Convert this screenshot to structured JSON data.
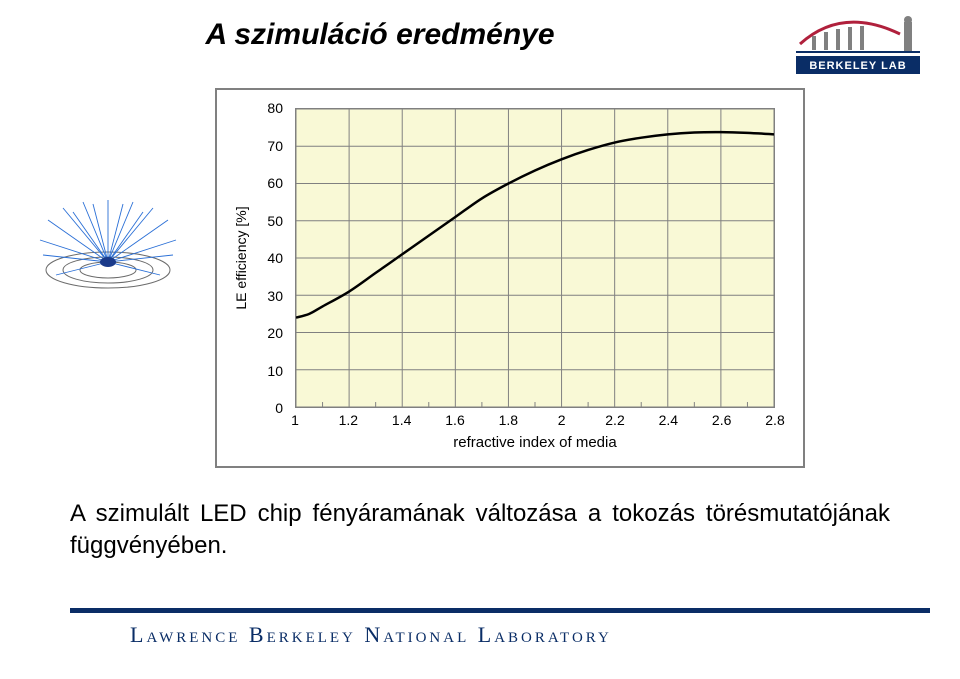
{
  "title": "A szimuláció eredménye",
  "logo": {
    "bar_color": "#0a2d66",
    "text": "BERKELEY LAB",
    "text_color": "#ffffff",
    "roof_color": "#b0203c",
    "pillar_color": "#808080"
  },
  "thumbnail": {
    "line_color": "#2a6fd6",
    "center_color": "#1a3a8a",
    "ring_color": "#6b6b6b",
    "background": "#ffffff"
  },
  "chart": {
    "type": "line",
    "plot_background": "#f9f9d6",
    "frame_border_color": "#808080",
    "grid_color": "#808080",
    "line_color": "#000000",
    "line_width": 2.5,
    "y_label": "LE efficiency [%]",
    "x_label": "refractive index of media",
    "label_fontsize": 14,
    "tick_fontsize": 14,
    "x_min": 1.0,
    "x_max": 2.8,
    "x_major_ticks": [
      1,
      1.2,
      1.4,
      1.6,
      1.8,
      2,
      2.2,
      2.4,
      2.6,
      2.8
    ],
    "x_tick_labels": [
      "1",
      "1.2",
      "1.4",
      "1.6",
      "1.8",
      "2",
      "2.2",
      "2.4",
      "2.6",
      "2.8"
    ],
    "x_minor_per_major": 1,
    "y_min": 0,
    "y_max": 80,
    "y_major_ticks": [
      0,
      10,
      20,
      30,
      40,
      50,
      60,
      70,
      80
    ],
    "y_tick_labels": [
      "0",
      "10",
      "20",
      "30",
      "40",
      "50",
      "60",
      "70",
      "80"
    ],
    "data": [
      {
        "x": 1.0,
        "y": 24
      },
      {
        "x": 1.05,
        "y": 25
      },
      {
        "x": 1.1,
        "y": 27
      },
      {
        "x": 1.2,
        "y": 31
      },
      {
        "x": 1.3,
        "y": 36
      },
      {
        "x": 1.4,
        "y": 41
      },
      {
        "x": 1.5,
        "y": 46
      },
      {
        "x": 1.6,
        "y": 51
      },
      {
        "x": 1.7,
        "y": 56
      },
      {
        "x": 1.8,
        "y": 60
      },
      {
        "x": 1.9,
        "y": 63.5
      },
      {
        "x": 2.0,
        "y": 66.5
      },
      {
        "x": 2.1,
        "y": 69
      },
      {
        "x": 2.2,
        "y": 71
      },
      {
        "x": 2.3,
        "y": 72.3
      },
      {
        "x": 2.4,
        "y": 73.2
      },
      {
        "x": 2.5,
        "y": 73.7
      },
      {
        "x": 2.6,
        "y": 73.8
      },
      {
        "x": 2.7,
        "y": 73.6
      },
      {
        "x": 2.8,
        "y": 73.2
      }
    ]
  },
  "body_text": "A szimulált LED chip fényáramának változása a tokozás törésmutatójának függvényében.",
  "footer": {
    "rule_color": "#0a2d66",
    "text": "Lawrence Berkeley National Laboratory",
    "text_color": "#0a2d66",
    "fontsize": 22
  }
}
